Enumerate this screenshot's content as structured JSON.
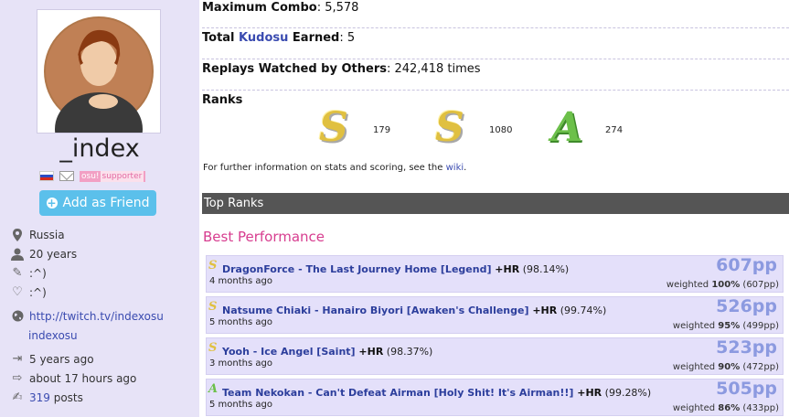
{
  "profile": {
    "username": "_index",
    "supporter_part1": "osu!",
    "supporter_part2": "supporter",
    "add_friend_label": "Add as Friend",
    "country": "Russia",
    "age": "20 years",
    "occupation": ":^)",
    "interests": ":^)",
    "website": "http://twitch.tv/indexosu",
    "twitch": "indexosu",
    "joined": "5 years ago",
    "last_active": "about 17 hours ago",
    "post_count": "319",
    "posts_suffix": " posts"
  },
  "stats": {
    "max_combo_label": "Maximum Combo",
    "max_combo_value": ": 5,578",
    "kudosu_label_pre": "Total ",
    "kudosu_link": "Kudosu",
    "kudosu_label_post": " Earned",
    "kudosu_value": ": 5",
    "replays_label": "Replays Watched by Others",
    "replays_value": ": 242,418 times"
  },
  "ranks": {
    "heading": "Ranks",
    "ssh_grade": "S",
    "ssh_count": "179",
    "sh_grade": "S",
    "sh_count": "1080",
    "a_grade": "A",
    "a_count": "274",
    "further_pre": "For further information on stats and scoring, see the ",
    "further_link": "wiki",
    "further_post": "."
  },
  "top_ranks": {
    "heading": "Top Ranks",
    "best_performance": "Best Performance",
    "weighted_label": "weighted ",
    "scores": [
      {
        "grade": "S",
        "title": "DragonForce - The Last Journey Home [Legend]",
        "mods": " +HR",
        "acc": " (98.14%)",
        "ago": "4 months ago",
        "pp": "607pp",
        "weight": "100%",
        "weighted_pp": " (607pp)"
      },
      {
        "grade": "S",
        "title": "Natsume Chiaki - Hanairo Biyori [Awaken's Challenge]",
        "mods": " +HR",
        "acc": " (99.74%)",
        "ago": "5 months ago",
        "pp": "526pp",
        "weight": "95%",
        "weighted_pp": " (499pp)"
      },
      {
        "grade": "S",
        "title": "Yooh - Ice Angel [Saint]",
        "mods": " +HR",
        "acc": " (98.37%)",
        "ago": "3 months ago",
        "pp": "523pp",
        "weight": "90%",
        "weighted_pp": " (472pp)"
      },
      {
        "grade": "A",
        "title": "Team Nekokan - Can't Defeat Airman [Holy Shit! It's Airman!!]",
        "mods": " +HR",
        "acc": " (99.28%)",
        "ago": "5 months ago",
        "pp": "505pp",
        "weight": "86%",
        "weighted_pp": " (433pp)"
      }
    ]
  },
  "colors": {
    "sidebar_bg": "#e7e3f7",
    "accent_blue": "#5bc0eb",
    "link": "#3a4bb0",
    "pink_heading": "#d73d8f",
    "score_row_bg": "#e4e0fa",
    "pp_color": "#8c9ae0",
    "grade_gold": "#e0c040",
    "grade_green": "#6cc04a"
  }
}
